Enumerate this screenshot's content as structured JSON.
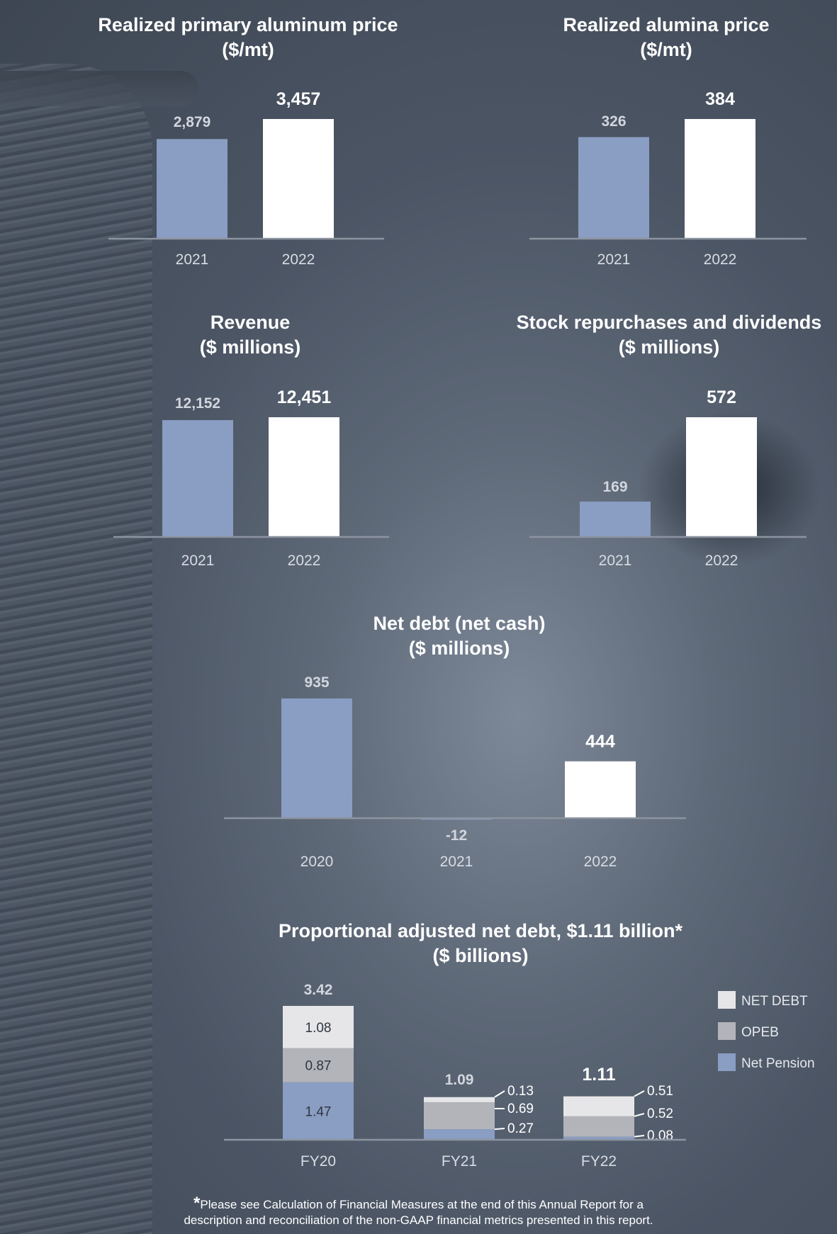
{
  "chart_data": [
    {
      "id": "alu",
      "type": "bar",
      "title": [
        "Realized primary aluminum price",
        "($/mt)"
      ],
      "categories": [
        "2021",
        "2022"
      ],
      "values": [
        2879,
        3457
      ],
      "value_labels": [
        "2,879",
        "3,457"
      ],
      "ylim": [
        0,
        3457
      ]
    },
    {
      "id": "alumina",
      "type": "bar",
      "title": [
        "Realized alumina price",
        "($/mt)"
      ],
      "categories": [
        "2021",
        "2022"
      ],
      "values": [
        326,
        384
      ],
      "value_labels": [
        "326",
        "384"
      ],
      "ylim": [
        0,
        384
      ]
    },
    {
      "id": "revenue",
      "type": "bar",
      "title": [
        "Revenue",
        "($ millions)"
      ],
      "categories": [
        "2021",
        "2022"
      ],
      "values": [
        12152,
        12451
      ],
      "value_labels": [
        "12,152",
        "12,451"
      ],
      "ylim": [
        0,
        12451
      ]
    },
    {
      "id": "buyback",
      "type": "bar",
      "title": [
        "Stock repurchases and dividends",
        "($ millions)"
      ],
      "categories": [
        "2021",
        "2022"
      ],
      "values": [
        169,
        572
      ],
      "value_labels": [
        "169",
        "572"
      ],
      "ylim": [
        0,
        572
      ]
    },
    {
      "id": "netdebt",
      "type": "bar",
      "title": [
        "Net debt (net cash)",
        "($ millions)"
      ],
      "categories": [
        "2020",
        "2021",
        "2022"
      ],
      "values": [
        935,
        -12,
        444
      ],
      "value_labels": [
        "935",
        "-12",
        "444"
      ],
      "ylim": [
        -12,
        935
      ]
    },
    {
      "id": "proportional",
      "type": "bar",
      "stacked": true,
      "title": [
        "Proportional adjusted net debt, $1.11 billion*",
        "($ billions)"
      ],
      "categories": [
        "FY20",
        "FY21",
        "FY22"
      ],
      "totals": [
        3.42,
        1.09,
        1.11
      ],
      "total_labels": [
        "3.42",
        "1.09",
        "1.11"
      ],
      "series": [
        {
          "name": "Net Pension",
          "values": [
            1.47,
            0.27,
            0.08
          ],
          "labels": [
            "1.47",
            "0.27",
            "0.08"
          ],
          "color": "#8a9dc2"
        },
        {
          "name": "OPEB",
          "values": [
            0.87,
            0.69,
            0.52
          ],
          "labels": [
            "0.87",
            "0.69",
            "0.52"
          ],
          "color": "#b2b4b9"
        },
        {
          "name": "NET DEBT",
          "values": [
            1.08,
            0.13,
            0.51
          ],
          "labels": [
            "1.08",
            "0.13",
            "0.51"
          ],
          "color": "#e6e6e8"
        }
      ],
      "legend": [
        "NET DEBT",
        "OPEB",
        "Net Pension"
      ],
      "legend_position": "right"
    }
  ],
  "colors": {
    "prior_year_bar": "#8a9dc2",
    "current_year_bar": "#ffffff",
    "baseline": "#8c94a0"
  },
  "footnote": {
    "star": "*",
    "line1": "Please see Calculation of Financial Measures at the end of this Annual Report for a",
    "line2": "description and reconciliation of the non-GAAP financial metrics presented in this report."
  }
}
